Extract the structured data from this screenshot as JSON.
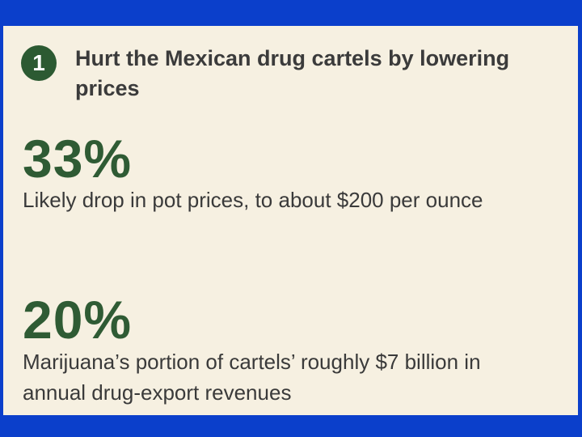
{
  "section": {
    "number": "1",
    "heading": "Hurt the Mexican drug cartels by lowering prices"
  },
  "stats": [
    {
      "value": "33%",
      "description": "Likely drop in pot prices, to about $200 per ounce"
    },
    {
      "value": "20%",
      "description": "Marijuana’s portion of cartels’ roughly $7 billion in annual drug-export revenues"
    }
  ],
  "colors": {
    "frame": "#0b3fcb",
    "panel": "#f6f0e1",
    "accent_green": "#2f5b34",
    "text": "#3a3a3a"
  }
}
